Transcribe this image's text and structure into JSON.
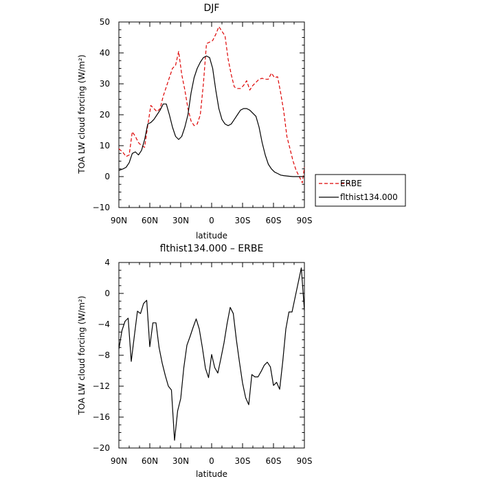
{
  "chart_data": [
    {
      "type": "line",
      "title": "DJF",
      "xlabel": "latitude",
      "ylabel": "TOA LW cloud forcing (W/m²)",
      "ylim": [
        -10,
        50
      ],
      "xlim": [
        90,
        -90
      ],
      "x_ticks": [
        {
          "value": 90,
          "label": "90N"
        },
        {
          "value": 60,
          "label": "60N"
        },
        {
          "value": 30,
          "label": "30N"
        },
        {
          "value": 0,
          "label": "0"
        },
        {
          "value": -30,
          "label": "30S"
        },
        {
          "value": -60,
          "label": "60S"
        },
        {
          "value": -90,
          "label": "90S"
        }
      ],
      "y_ticks": [
        -10,
        0,
        10,
        20,
        30,
        40,
        50
      ],
      "legend": "right-bottom",
      "series": [
        {
          "name": "ERBE",
          "color": "#dd0000",
          "dash": "dashed",
          "x": [
            90,
            86,
            83,
            80,
            77,
            74,
            71,
            68,
            65,
            62,
            59,
            56,
            53,
            50,
            47,
            44,
            41,
            38,
            35,
            32,
            29,
            26,
            23,
            20,
            17,
            14,
            11,
            8,
            5,
            2,
            -1,
            -4,
            -7,
            -10,
            -13,
            -16,
            -19,
            -22,
            -25,
            -28,
            -31,
            -34,
            -37,
            -40,
            -43,
            -46,
            -49,
            -52,
            -55,
            -58,
            -61,
            -64,
            -67,
            -70,
            -73,
            -76,
            -79,
            -82,
            -85,
            -88,
            -90
          ],
          "values": [
            9,
            7.8,
            6.5,
            7,
            14.5,
            13,
            11,
            10,
            9.5,
            16.5,
            23,
            22,
            21,
            22,
            26,
            29,
            32,
            35,
            36,
            40.5,
            33,
            28,
            22,
            18,
            16.5,
            17,
            20,
            30,
            43,
            43.5,
            44,
            46,
            48.5,
            47,
            45.5,
            38,
            33,
            29,
            28.5,
            28.5,
            29.5,
            31,
            28,
            29.5,
            30.5,
            31.5,
            31.8,
            31.5,
            31.5,
            33.5,
            32,
            32.3,
            27,
            21,
            13,
            9,
            5,
            2,
            0,
            -2,
            3
          ]
        },
        {
          "name": "flthist134.000",
          "color": "#000000",
          "dash": "solid",
          "x": [
            90,
            86,
            83,
            80,
            77,
            74,
            71,
            68,
            65,
            62,
            59,
            56,
            53,
            50,
            47,
            44,
            41,
            38,
            35,
            32,
            29,
            26,
            23,
            20,
            17,
            14,
            11,
            8,
            5,
            2,
            -1,
            -4,
            -7,
            -10,
            -13,
            -16,
            -19,
            -22,
            -25,
            -28,
            -31,
            -34,
            -37,
            -40,
            -43,
            -46,
            -49,
            -52,
            -55,
            -58,
            -61,
            -64,
            -67,
            -70,
            -73,
            -76,
            -79,
            -82,
            -85,
            -88,
            -90
          ],
          "values": [
            2,
            2.5,
            3,
            4.5,
            7.5,
            8,
            7,
            8.5,
            12,
            17,
            17.5,
            18.5,
            20,
            21.5,
            23.5,
            23.5,
            20,
            16,
            13,
            12,
            13,
            16,
            20,
            27,
            32,
            35,
            37,
            38.5,
            39,
            38.5,
            35,
            28,
            22,
            18.5,
            17,
            16.5,
            17,
            18.5,
            20,
            21.5,
            22,
            22,
            21.5,
            20.5,
            19.5,
            16,
            11,
            7,
            4,
            2.5,
            1.5,
            1,
            0.5,
            0.3,
            0.2,
            0.1,
            0,
            0,
            0,
            0,
            0
          ]
        }
      ]
    },
    {
      "type": "line",
      "title": "flthist134.000 – ERBE",
      "xlabel": "latitude",
      "ylabel": "TOA LW cloud forcing (W/m²)",
      "ylim": [
        -20,
        4
      ],
      "xlim": [
        90,
        -90
      ],
      "x_ticks": [
        {
          "value": 90,
          "label": "90N"
        },
        {
          "value": 60,
          "label": "60N"
        },
        {
          "value": 30,
          "label": "30N"
        },
        {
          "value": 0,
          "label": "0"
        },
        {
          "value": -30,
          "label": "30S"
        },
        {
          "value": -60,
          "label": "60S"
        },
        {
          "value": -90,
          "label": "90S"
        }
      ],
      "y_ticks": [
        -20,
        -16,
        -12,
        -8,
        -4,
        0,
        4
      ],
      "series": [
        {
          "color": "#000000",
          "dash": "solid",
          "x": [
            90,
            87,
            84,
            81,
            78,
            75,
            72,
            69,
            66,
            63,
            60,
            57,
            54,
            51,
            48,
            45,
            42,
            39,
            36,
            33,
            30,
            27,
            24,
            21,
            18,
            15,
            12,
            9,
            6,
            3,
            0,
            -3,
            -6,
            -9,
            -12,
            -15,
            -18,
            -21,
            -24,
            -27,
            -30,
            -33,
            -36,
            -39,
            -42,
            -45,
            -48,
            -51,
            -54,
            -57,
            -60,
            -63,
            -66,
            -69,
            -72,
            -75,
            -78,
            -81,
            -84,
            -87,
            -90
          ],
          "values": [
            -7.2,
            -4.8,
            -3.6,
            -3.2,
            -8.8,
            -5.5,
            -2.3,
            -2.6,
            -1.3,
            -0.9,
            -6.9,
            -3.8,
            -3.8,
            -7.0,
            -9.0,
            -10.6,
            -12.0,
            -12.5,
            -19.0,
            -15.2,
            -13.6,
            -9.6,
            -6.7,
            -5.6,
            -4.4,
            -3.3,
            -4.6,
            -7.0,
            -9.7,
            -10.9,
            -7.9,
            -9.6,
            -10.3,
            -8.4,
            -6.4,
            -3.9,
            -1.8,
            -2.6,
            -6.0,
            -8.9,
            -11.6,
            -13.5,
            -14.4,
            -10.5,
            -10.8,
            -10.8,
            -10.1,
            -9.3,
            -8.9,
            -9.5,
            -11.9,
            -11.5,
            -12.4,
            -8.8,
            -4.6,
            -2.4,
            -2.4,
            -0.5,
            1.4,
            3.3,
            -2.2
          ]
        }
      ]
    }
  ]
}
